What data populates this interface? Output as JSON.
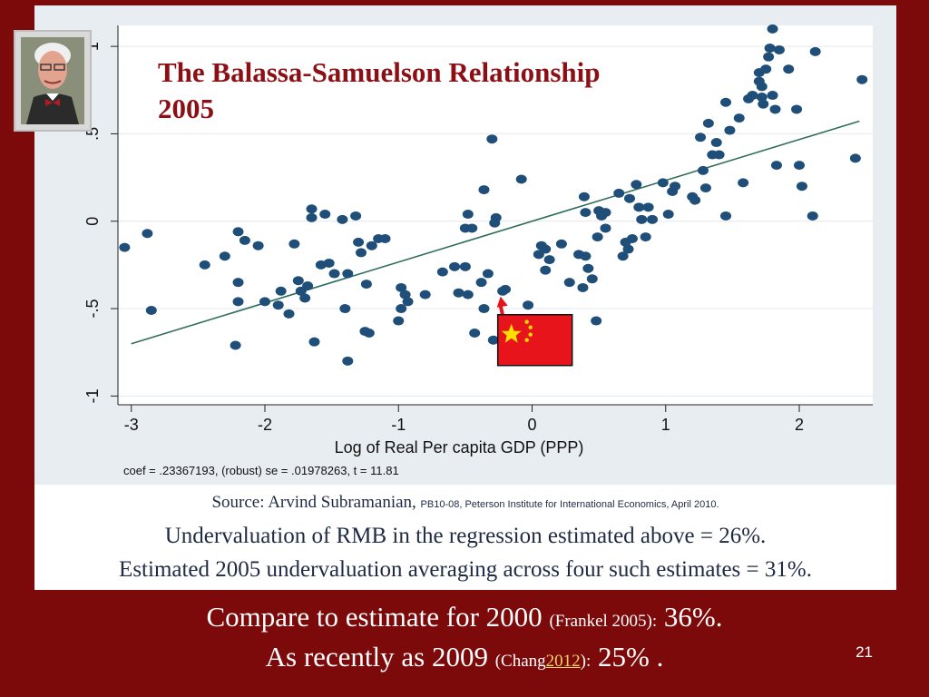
{
  "slide": {
    "number": "21",
    "colors": {
      "background": "#7c0a0a",
      "title": "#8b0f14",
      "points": "#1f4e79",
      "fit_line": "#2e6e5a"
    }
  },
  "chart_data": {
    "type": "scatter",
    "title": "The Balassa-Samuelson Relationship",
    "subtitle": "2005",
    "xlabel": "Log of Real Per capita GDP (PPP)",
    "ylabel": "",
    "note": "coef = .23367193, (robust) se = .01978263, t = 11.81",
    "xlim": [
      -3.1,
      2.55
    ],
    "ylim": [
      -1.05,
      1.12
    ],
    "x_ticks": [
      -3,
      -2,
      -1,
      0,
      1,
      2
    ],
    "x_tick_labels": [
      "-3",
      "-2",
      "-1",
      "0",
      "1",
      "2"
    ],
    "y_ticks": [
      -1,
      -0.5,
      0,
      0.5,
      1
    ],
    "y_tick_labels": [
      "-1",
      "-.5",
      "0",
      ".5",
      "1"
    ],
    "grid": "horizontal",
    "fit_line": {
      "intercept": 0.0,
      "slope": 0.23367193,
      "x_range": [
        -3.0,
        2.45
      ]
    },
    "highlight": {
      "label": "China",
      "x": -0.25,
      "y": -0.41,
      "marker": "flag"
    },
    "points": [
      [
        -3.05,
        -0.15
      ],
      [
        -2.88,
        -0.07
      ],
      [
        -2.85,
        -0.51
      ],
      [
        -2.45,
        -0.25
      ],
      [
        -2.3,
        -0.2
      ],
      [
        -2.22,
        -0.71
      ],
      [
        -2.2,
        -0.35
      ],
      [
        -2.2,
        -0.46
      ],
      [
        -2.2,
        -0.06
      ],
      [
        -2.15,
        -0.11
      ],
      [
        -2.05,
        -0.14
      ],
      [
        -2.0,
        -0.46
      ],
      [
        -1.9,
        -0.48
      ],
      [
        -1.88,
        -0.4
      ],
      [
        -1.82,
        -0.53
      ],
      [
        -1.78,
        -0.13
      ],
      [
        -1.75,
        -0.34
      ],
      [
        -1.73,
        -0.4
      ],
      [
        -1.7,
        -0.44
      ],
      [
        -1.68,
        -0.37
      ],
      [
        -1.65,
        0.07
      ],
      [
        -1.65,
        0.02
      ],
      [
        -1.63,
        -0.69
      ],
      [
        -1.58,
        -0.25
      ],
      [
        -1.55,
        0.04
      ],
      [
        -1.52,
        -0.24
      ],
      [
        -1.48,
        -0.3
      ],
      [
        -1.42,
        0.01
      ],
      [
        -1.4,
        -0.5
      ],
      [
        -1.38,
        -0.8
      ],
      [
        -1.38,
        -0.3
      ],
      [
        -1.32,
        0.03
      ],
      [
        -1.3,
        -0.12
      ],
      [
        -1.28,
        -0.18
      ],
      [
        -1.25,
        -0.63
      ],
      [
        -1.24,
        -0.36
      ],
      [
        -1.22,
        -0.64
      ],
      [
        -1.2,
        -0.14
      ],
      [
        -1.15,
        -0.1
      ],
      [
        -1.1,
        -0.1
      ],
      [
        -1.0,
        -0.57
      ],
      [
        -0.98,
        -0.5
      ],
      [
        -0.98,
        -0.38
      ],
      [
        -0.95,
        -0.42
      ],
      [
        -0.93,
        -0.46
      ],
      [
        -0.8,
        -0.42
      ],
      [
        -0.67,
        -0.29
      ],
      [
        -0.58,
        -0.26
      ],
      [
        -0.55,
        -0.41
      ],
      [
        -0.5,
        -0.26
      ],
      [
        -0.5,
        -0.04
      ],
      [
        -0.48,
        0.04
      ],
      [
        -0.48,
        -0.42
      ],
      [
        -0.45,
        -0.04
      ],
      [
        -0.43,
        -0.64
      ],
      [
        -0.38,
        -0.35
      ],
      [
        -0.36,
        -0.5
      ],
      [
        -0.36,
        0.18
      ],
      [
        -0.33,
        -0.3
      ],
      [
        -0.3,
        0.47
      ],
      [
        -0.29,
        -0.68
      ],
      [
        -0.28,
        -0.01
      ],
      [
        -0.27,
        0.02
      ],
      [
        -0.22,
        -0.4
      ],
      [
        -0.2,
        -0.39
      ],
      [
        -0.08,
        0.24
      ],
      [
        -0.03,
        -0.48
      ],
      [
        0.05,
        -0.19
      ],
      [
        0.07,
        -0.14
      ],
      [
        0.1,
        -0.28
      ],
      [
        0.1,
        -0.16
      ],
      [
        0.13,
        -0.22
      ],
      [
        0.22,
        -0.13
      ],
      [
        0.28,
        -0.35
      ],
      [
        0.35,
        -0.19
      ],
      [
        0.38,
        -0.38
      ],
      [
        0.39,
        0.14
      ],
      [
        0.4,
        0.05
      ],
      [
        0.4,
        -0.2
      ],
      [
        0.42,
        -0.27
      ],
      [
        0.45,
        -0.33
      ],
      [
        0.48,
        -0.57
      ],
      [
        0.49,
        -0.09
      ],
      [
        0.5,
        0.06
      ],
      [
        0.52,
        0.03
      ],
      [
        0.55,
        0.05
      ],
      [
        0.55,
        -0.04
      ],
      [
        0.65,
        0.16
      ],
      [
        0.68,
        -0.2
      ],
      [
        0.7,
        -0.12
      ],
      [
        0.72,
        -0.16
      ],
      [
        0.73,
        0.13
      ],
      [
        0.75,
        -0.1
      ],
      [
        0.78,
        0.21
      ],
      [
        0.8,
        0.08
      ],
      [
        0.82,
        0.01
      ],
      [
        0.85,
        -0.09
      ],
      [
        0.87,
        0.08
      ],
      [
        0.9,
        0.01
      ],
      [
        0.98,
        0.22
      ],
      [
        1.02,
        0.04
      ],
      [
        1.05,
        0.17
      ],
      [
        1.07,
        0.2
      ],
      [
        1.2,
        0.14
      ],
      [
        1.22,
        0.12
      ],
      [
        1.26,
        0.48
      ],
      [
        1.28,
        0.29
      ],
      [
        1.3,
        0.19
      ],
      [
        1.32,
        0.56
      ],
      [
        1.35,
        0.38
      ],
      [
        1.38,
        0.45
      ],
      [
        1.4,
        0.38
      ],
      [
        1.45,
        0.03
      ],
      [
        1.45,
        0.68
      ],
      [
        1.48,
        0.52
      ],
      [
        1.55,
        0.59
      ],
      [
        1.58,
        0.22
      ],
      [
        1.62,
        0.7
      ],
      [
        1.65,
        0.72
      ],
      [
        1.7,
        0.85
      ],
      [
        1.7,
        0.8
      ],
      [
        1.72,
        0.77
      ],
      [
        1.72,
        0.71
      ],
      [
        1.73,
        0.67
      ],
      [
        1.75,
        0.87
      ],
      [
        1.77,
        0.94
      ],
      [
        1.78,
        0.99
      ],
      [
        1.8,
        0.72
      ],
      [
        1.8,
        1.1
      ],
      [
        1.82,
        0.64
      ],
      [
        1.83,
        0.32
      ],
      [
        1.85,
        0.98
      ],
      [
        1.92,
        0.87
      ],
      [
        1.98,
        0.64
      ],
      [
        2.0,
        0.32
      ],
      [
        2.02,
        0.2
      ],
      [
        2.1,
        0.03
      ],
      [
        2.12,
        0.97
      ],
      [
        2.42,
        0.36
      ],
      [
        2.47,
        0.81
      ]
    ]
  },
  "source": {
    "prefix": "Source: Arvind Subramanian,",
    "small": "PB10-08, Peterson Institute for International Economics, April 2010."
  },
  "text": {
    "underval_1": "Undervaluation of RMB in the regression estimated above = 26%.",
    "underval_2": "Estimated 2005 undervaluation averaging across four such estimates = 31%.",
    "footer1_a": "Compare to estimate for 2000",
    "footer1_b": "(Frankel 2005):",
    "footer1_c": "36%.",
    "footer2_a": "As recently as 2009",
    "footer2_b": "(Chang",
    "footer2_link": "2012",
    "footer2_c": "):",
    "footer2_d": "25% ."
  }
}
